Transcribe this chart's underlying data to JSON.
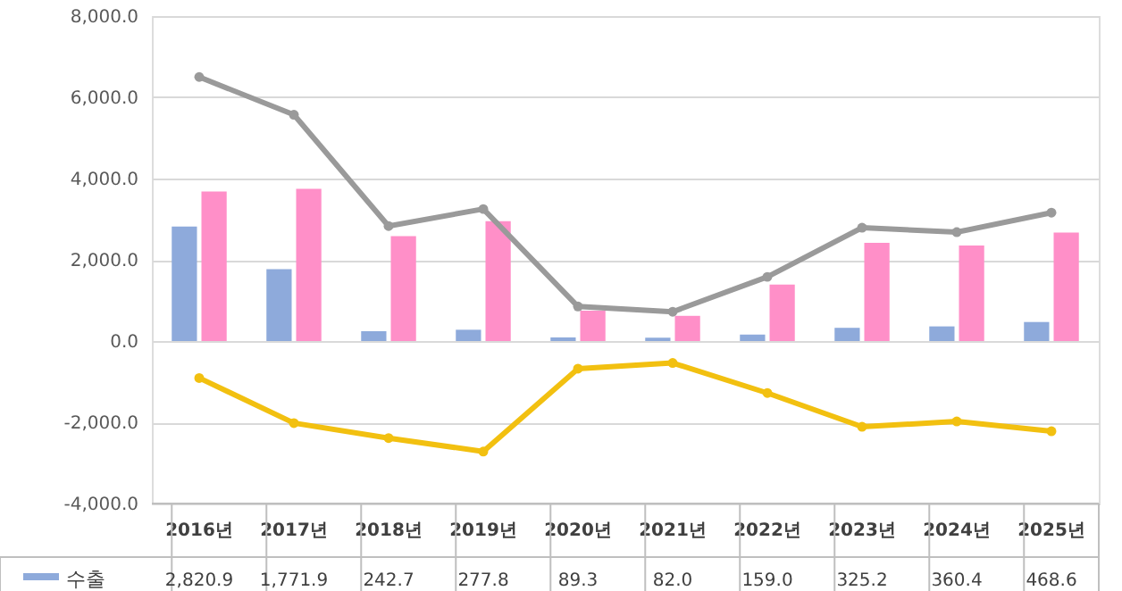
{
  "chart_data": {
    "type": "bar",
    "categories": [
      "2016년",
      "2017년",
      "2018년",
      "2019년",
      "2020년",
      "2021년",
      "2022년",
      "2023년",
      "2024년",
      "2025년"
    ],
    "series": [
      {
        "name": "수출",
        "color": "#8eaadb",
        "values": [
          2820.9,
          1771.9,
          242.7,
          277.8,
          89.3,
          82.0,
          159.0,
          325.2,
          360.4,
          468.6
        ],
        "value_labels": [
          "2,820.9",
          "1,771.9",
          "242.7",
          "277.8",
          "89.3",
          "82.0",
          "159.0",
          "325.2",
          "360.4",
          "468.6"
        ]
      },
      {
        "color": "#ff8fc8",
        "values": [
          3680,
          3750,
          2580,
          2950,
          750,
          620,
          1390,
          2420,
          2350,
          2670
        ]
      },
      {
        "type": "line",
        "color": "#9a9a9a",
        "values": [
          6500,
          5570,
          2830,
          3250,
          850,
          720,
          1580,
          2790,
          2680,
          3160
        ]
      },
      {
        "type": "line",
        "color": "#f2c010",
        "values": [
          -910,
          -2020,
          -2390,
          -2720,
          -680,
          -540,
          -1280,
          -2110,
          -1980,
          -2220
        ]
      }
    ],
    "ylim": [
      -4000,
      8000
    ],
    "yticks": [
      {
        "value": -4000,
        "label": "-4,000.0"
      },
      {
        "value": -2000,
        "label": "-2,000.0"
      },
      {
        "value": 0,
        "label": "0.0"
      },
      {
        "value": 2000,
        "label": "2,000.0"
      },
      {
        "value": 4000,
        "label": "4,000.0"
      },
      {
        "value": 6000,
        "label": "6,000.0"
      },
      {
        "value": 8000,
        "label": "8,000.0"
      }
    ],
    "grid": "y",
    "marker": "circle",
    "line_style": "solid"
  }
}
